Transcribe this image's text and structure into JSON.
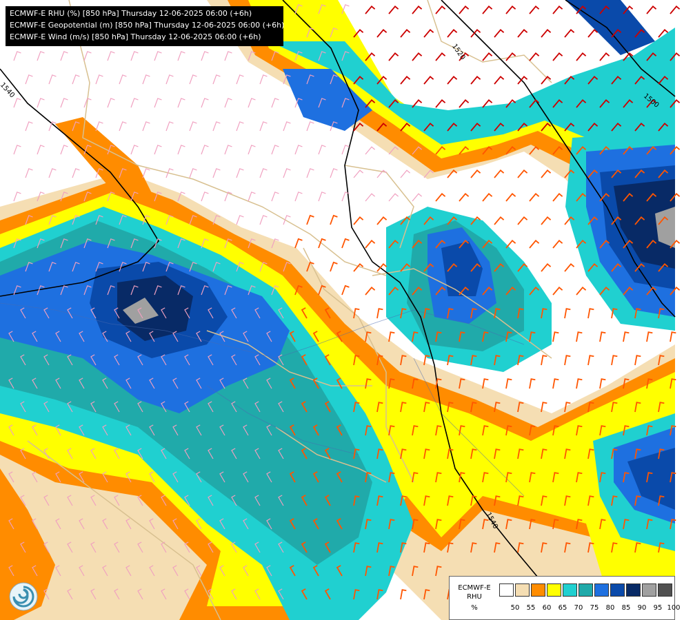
{
  "titles": [
    "ECMWF-E RHU (%) [850 hPa] Thursday 12-06-2025 06:00 (+6h)",
    "ECMWF-E Geopotential (m) [850 hPa] Thursday 12-06-2025 06:00 (+6h)",
    "ECMWF-E Wind (m/s) [850 hPa] Thursday 12-06-2025 06:00 (+6h)"
  ],
  "isolines": [
    "1540",
    "1520",
    "1500",
    "1540"
  ],
  "legend": {
    "model": "ECMWF-E",
    "variable": "RHU",
    "unit": "%",
    "ticks": [
      "50",
      "55",
      "60",
      "65",
      "70",
      "75",
      "80",
      "85",
      "90",
      "95",
      "100"
    ],
    "colors": [
      "#ffffff",
      "#f5deb3",
      "#ff8c00",
      "#ffff00",
      "#20d0d0",
      "#20aaaa",
      "#1e70e0",
      "#0a4aaa",
      "#082a66",
      "#a0a0a0",
      "#505050"
    ]
  },
  "map_colors": {
    "rhu_50": "#f5deb3",
    "rhu_55": "#ff8c00",
    "rhu_60": "#ffff00",
    "rhu_65": "#20d0d0",
    "rhu_70": "#20aaaa",
    "rhu_75": "#1e70e0",
    "rhu_80": "#0a4aaa",
    "rhu_85": "#082a66",
    "rhu_90": "#a0a0a0",
    "borders": "#d8c090",
    "rivers": "#4a6ab0",
    "geopotential": "#000000",
    "barbs_light": "#f0a0c0",
    "barbs_strong": "#ff5500",
    "barbs_max": "#cc0000"
  }
}
